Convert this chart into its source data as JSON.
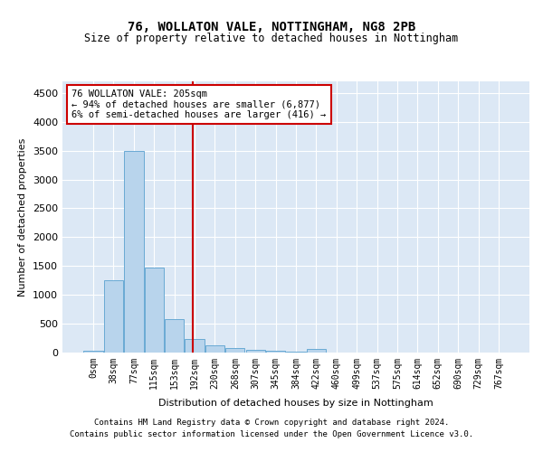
{
  "title1": "76, WOLLATON VALE, NOTTINGHAM, NG8 2PB",
  "title2": "Size of property relative to detached houses in Nottingham",
  "xlabel": "Distribution of detached houses by size in Nottingham",
  "ylabel": "Number of detached properties",
  "footnote1": "Contains HM Land Registry data © Crown copyright and database right 2024.",
  "footnote2": "Contains public sector information licensed under the Open Government Licence v3.0.",
  "bin_labels": [
    "0sqm",
    "38sqm",
    "77sqm",
    "115sqm",
    "153sqm",
    "192sqm",
    "230sqm",
    "268sqm",
    "307sqm",
    "345sqm",
    "384sqm",
    "422sqm",
    "460sqm",
    "499sqm",
    "537sqm",
    "575sqm",
    "614sqm",
    "652sqm",
    "690sqm",
    "729sqm",
    "767sqm"
  ],
  "bar_values": [
    30,
    1250,
    3500,
    1480,
    580,
    230,
    130,
    80,
    40,
    30,
    10,
    55,
    0,
    0,
    0,
    0,
    0,
    0,
    0,
    0,
    0
  ],
  "bar_color": "#b8d4ec",
  "bar_edge_color": "#6aaad4",
  "background_color": "#dce8f5",
  "property_sqm": 205,
  "bin_width": 38,
  "annotation_text1": "76 WOLLATON VALE: 205sqm",
  "annotation_text2": "← 94% of detached houses are smaller (6,877)",
  "annotation_text3": "6% of semi-detached houses are larger (416) →",
  "annotation_box_color": "#ffffff",
  "annotation_box_edge": "#cc0000",
  "vline_color": "#cc0000",
  "ylim": [
    0,
    4700
  ],
  "yticks": [
    0,
    500,
    1000,
    1500,
    2000,
    2500,
    3000,
    3500,
    4000,
    4500
  ]
}
